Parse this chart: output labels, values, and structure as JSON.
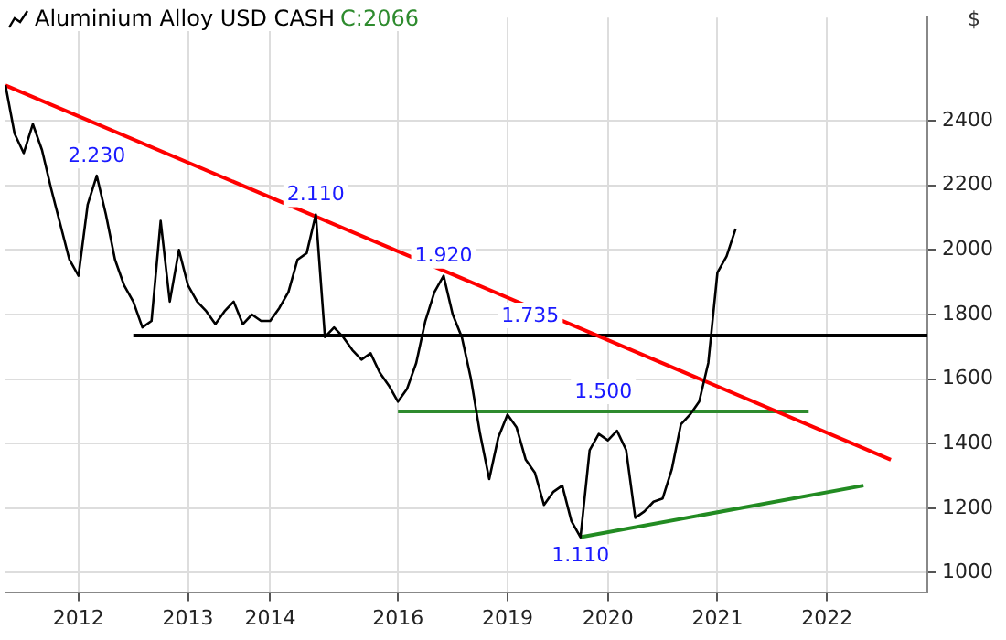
{
  "chart_data": {
    "type": "line",
    "title": "Aluminium Alloy USD CASH",
    "subtitle": "C:2066",
    "ylabel": "$",
    "categories": [
      null,
      null,
      null,
      null,
      null,
      null,
      null,
      null,
      "2012",
      null,
      null,
      null,
      null,
      null,
      null,
      null,
      null,
      null,
      null,
      null,
      "2013",
      null,
      null,
      null,
      null,
      null,
      null,
      null,
      null,
      "2014",
      null,
      null,
      null,
      null,
      null,
      null,
      null,
      null,
      null,
      null,
      null,
      null,
      null,
      "2016",
      null,
      null,
      null,
      null,
      null,
      null,
      null,
      null,
      null,
      null,
      null,
      "2019",
      null,
      null,
      null,
      null,
      null,
      null,
      null,
      null,
      null,
      null,
      "2020",
      null,
      null,
      null,
      null,
      null,
      null,
      null,
      null,
      null,
      null,
      null,
      "2021",
      null,
      null,
      null,
      null,
      null,
      null,
      null,
      null,
      null,
      null,
      null,
      "2022",
      null,
      null,
      null,
      null,
      null,
      null,
      null,
      null,
      null,
      null,
      null
    ],
    "series": [
      {
        "color": "#000000",
        "values": [
          2510,
          2360,
          2300,
          2390,
          2310,
          2190,
          2080,
          1970,
          1920,
          2140,
          2230,
          2110,
          1970,
          1890,
          1840,
          1760,
          1780,
          2090,
          1840,
          2000,
          1890,
          1840,
          1810,
          1770,
          1810,
          1840,
          1770,
          1800,
          1780,
          1780,
          1820,
          1870,
          1970,
          1990,
          2110,
          1730,
          1760,
          1730,
          1690,
          1660,
          1680,
          1620,
          1580,
          1530,
          1570,
          1650,
          1780,
          1870,
          1920,
          1800,
          1730,
          1600,
          1430,
          1290,
          1420,
          1490,
          1450,
          1350,
          1310,
          1210,
          1250,
          1270,
          1160,
          1110,
          1380,
          1430,
          1410,
          1440,
          1380,
          1170,
          1190,
          1220,
          1230,
          1320,
          1460,
          1490,
          1530,
          1650,
          1930,
          1980,
          2066,
          null,
          null,
          null,
          null,
          null,
          null,
          null,
          null,
          null,
          null,
          null,
          null,
          null,
          null,
          null,
          null,
          null,
          null,
          null,
          null,
          null
        ]
      },
      {
        "color": "#ff0000",
        "values": [
          2510,
          null,
          null,
          null,
          null,
          null,
          null,
          null,
          null,
          null,
          null,
          null,
          null,
          null,
          null,
          null,
          null,
          null,
          null,
          null,
          null,
          null,
          null,
          null,
          null,
          null,
          null,
          null,
          null,
          null,
          null,
          null,
          null,
          null,
          null,
          null,
          null,
          null,
          null,
          null,
          null,
          null,
          null,
          null,
          null,
          null,
          null,
          null,
          null,
          null,
          null,
          null,
          null,
          null,
          null,
          null,
          null,
          null,
          null,
          null,
          null,
          null,
          null,
          null,
          null,
          null,
          null,
          null,
          null,
          null,
          null,
          null,
          null,
          null,
          null,
          null,
          null,
          null,
          null,
          null,
          null,
          null,
          null,
          null,
          null,
          null,
          null,
          null,
          null,
          null,
          null,
          null,
          null,
          null,
          null,
          null,
          null,
          1350,
          null,
          null,
          null,
          null
        ]
      },
      {
        "color": "#000000",
        "values": [
          null,
          null,
          null,
          null,
          null,
          null,
          null,
          null,
          null,
          null,
          null,
          null,
          null,
          null,
          1735,
          null,
          null,
          null,
          null,
          null,
          null,
          null,
          null,
          null,
          null,
          null,
          null,
          null,
          null,
          null,
          null,
          null,
          null,
          null,
          null,
          null,
          null,
          null,
          null,
          null,
          null,
          null,
          null,
          null,
          null,
          null,
          null,
          null,
          null,
          null,
          null,
          null,
          null,
          null,
          null,
          null,
          null,
          null,
          null,
          null,
          null,
          null,
          null,
          null,
          null,
          null,
          null,
          null,
          null,
          null,
          null,
          null,
          null,
          null,
          null,
          null,
          null,
          null,
          null,
          null,
          null,
          null,
          null,
          null,
          null,
          null,
          null,
          null,
          null,
          null,
          null,
          null,
          null,
          null,
          null,
          null,
          null,
          null,
          null,
          null,
          null,
          1735
        ]
      },
      {
        "color": "#2e8b2e",
        "values": [
          null,
          null,
          null,
          null,
          null,
          null,
          null,
          null,
          null,
          null,
          null,
          null,
          null,
          null,
          null,
          null,
          null,
          null,
          null,
          null,
          null,
          null,
          null,
          null,
          null,
          null,
          null,
          null,
          null,
          null,
          null,
          null,
          null,
          null,
          null,
          null,
          null,
          null,
          null,
          null,
          null,
          null,
          null,
          1500,
          null,
          null,
          null,
          null,
          null,
          null,
          null,
          null,
          null,
          null,
          null,
          null,
          null,
          null,
          null,
          null,
          null,
          null,
          null,
          null,
          null,
          null,
          null,
          null,
          null,
          null,
          null,
          null,
          null,
          null,
          null,
          null,
          null,
          null,
          null,
          null,
          null,
          null,
          null,
          null,
          null,
          null,
          null,
          null,
          1500,
          null,
          null,
          null,
          null,
          null,
          null,
          null,
          null,
          null,
          null,
          null,
          null,
          null
        ]
      },
      {
        "color": "#228b22",
        "values": [
          null,
          null,
          null,
          null,
          null,
          null,
          null,
          null,
          null,
          null,
          null,
          null,
          null,
          null,
          null,
          null,
          null,
          null,
          null,
          null,
          null,
          null,
          null,
          null,
          null,
          null,
          null,
          null,
          null,
          null,
          null,
          null,
          null,
          null,
          null,
          null,
          null,
          null,
          null,
          null,
          null,
          null,
          null,
          null,
          null,
          null,
          null,
          null,
          null,
          null,
          null,
          null,
          null,
          null,
          null,
          null,
          null,
          null,
          null,
          null,
          null,
          null,
          null,
          1110,
          null,
          null,
          null,
          null,
          null,
          null,
          null,
          null,
          null,
          null,
          null,
          null,
          null,
          null,
          null,
          null,
          null,
          null,
          null,
          null,
          null,
          null,
          null,
          null,
          null,
          null,
          null,
          null,
          null,
          null,
          1270,
          null,
          null,
          null,
          null,
          null,
          null,
          null
        ]
      }
    ],
    "ylim": [
      940,
      2720
    ],
    "yticks": [
      1000,
      1200,
      1400,
      1600,
      1800,
      2000,
      2200,
      2400
    ],
    "annotations": [
      {
        "text": "2.230",
        "y": 2230
      },
      {
        "text": "2.110",
        "y": 2110
      },
      {
        "text": "1.920",
        "y": 1920
      },
      {
        "text": "1.735",
        "y": 1735
      },
      {
        "text": "1.500",
        "y": 1500
      },
      {
        "text": "1.110",
        "y": 1110
      }
    ],
    "grid": true,
    "legend": false,
    "marker": "none"
  }
}
